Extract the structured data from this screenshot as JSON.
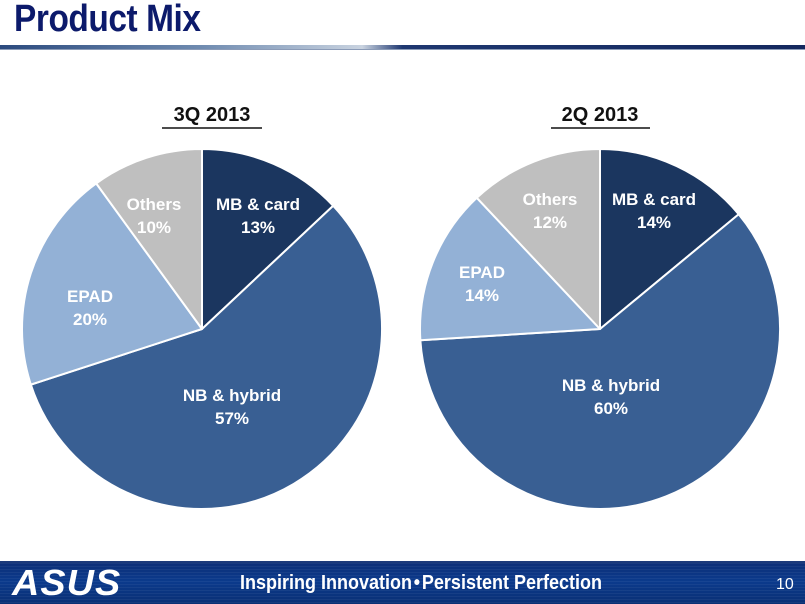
{
  "slide": {
    "title": "Product Mix",
    "footer_tagline_left": "Inspiring Innovation",
    "footer_separator": "•",
    "footer_tagline_right": "Persistent Perfection",
    "page_number": "10",
    "logo_text": "ASUS"
  },
  "colors": {
    "title": "#0c1a6b",
    "mb_card": "#1b365f",
    "nb_hybrid": "#395f93",
    "epad": "#93b1d6",
    "others": "#bfbfbf",
    "footer": "#0b3a8c"
  },
  "chart_data": [
    {
      "type": "pie",
      "title": "3Q 2013",
      "unit": "%",
      "categories": [
        "MB & card",
        "NB & hybrid",
        "EPAD",
        "Others"
      ],
      "values": [
        13,
        57,
        20,
        10
      ],
      "labels": [
        "13%",
        "57%",
        "20%",
        "10%"
      ],
      "start_angle": "12 o'clock",
      "direction": "clockwise",
      "legend": "none (data labels inside slices)"
    },
    {
      "type": "pie",
      "title": "2Q 2013",
      "unit": "%",
      "categories": [
        "MB & card",
        "NB & hybrid",
        "EPAD",
        "Others"
      ],
      "values": [
        14,
        60,
        14,
        12
      ],
      "labels": [
        "14%",
        "60%",
        "14%",
        "12%"
      ],
      "start_angle": "12 o'clock",
      "direction": "clockwise",
      "legend": "none (data labels inside slices)"
    }
  ]
}
